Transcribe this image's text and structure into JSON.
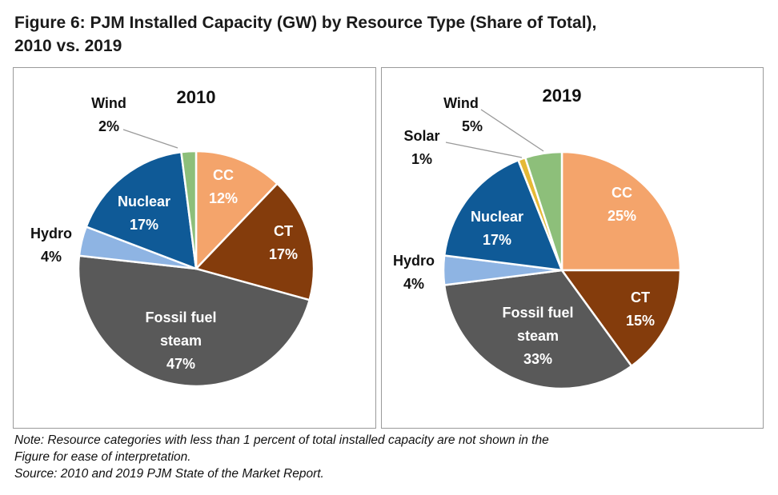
{
  "figure": {
    "title_line1": "Figure 6: PJM Installed Capacity (GW) by Resource Type (Share of Total),",
    "title_line2": "2010 vs. 2019"
  },
  "chart_data": [
    {
      "type": "pie",
      "title": "2010",
      "unit": "%",
      "slices": [
        {
          "label": "CC",
          "value": 12,
          "color": "#F4A46B"
        },
        {
          "label": "CT",
          "value": 17,
          "color": "#843C0C"
        },
        {
          "label": "Fossil fuel steam",
          "value": 47,
          "color": "#595959"
        },
        {
          "label": "Hydro",
          "value": 4,
          "color": "#8EB4E3"
        },
        {
          "label": "Nuclear",
          "value": 17,
          "color": "#0F5A97"
        },
        {
          "label": "Wind",
          "value": 2,
          "color": "#8DBF7A"
        }
      ]
    },
    {
      "type": "pie",
      "title": "2019",
      "unit": "%",
      "slices": [
        {
          "label": "CC",
          "value": 25,
          "color": "#F4A46B"
        },
        {
          "label": "CT",
          "value": 15,
          "color": "#843C0C"
        },
        {
          "label": "Fossil fuel steam",
          "value": 33,
          "color": "#595959"
        },
        {
          "label": "Hydro",
          "value": 4,
          "color": "#8EB4E3"
        },
        {
          "label": "Nuclear",
          "value": 17,
          "color": "#0F5A97"
        },
        {
          "label": "Solar",
          "value": 1,
          "color": "#E6B936"
        },
        {
          "label": "Wind",
          "value": 5,
          "color": "#8DBF7A"
        }
      ]
    }
  ],
  "notes": {
    "line1": "Note: Resource categories with less than 1 percent of total installed capacity are not shown in the",
    "line2": "Figure for ease of interpretation.",
    "line3": "Source: 2010 and 2019 PJM State of the Market Report."
  }
}
